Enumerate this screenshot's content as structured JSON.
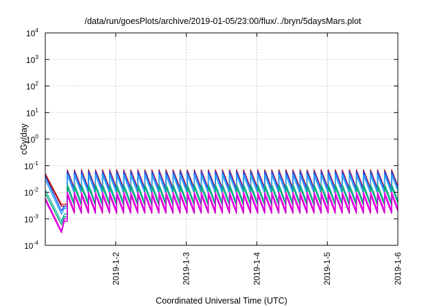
{
  "chart_data": {
    "type": "line",
    "title": "/data/run/goesPlots/archive/2019-01-05/23:00/flux/../bryn/5daysMars.plot",
    "xlabel": "Coordinated Universal Time (UTC)",
    "ylabel": "cGy/day",
    "y_scale": "log",
    "ylim": [
      0.0001,
      10000
    ],
    "y_ticks": [
      {
        "base": "10",
        "exp": "-4"
      },
      {
        "base": "10",
        "exp": "-3"
      },
      {
        "base": "10",
        "exp": "-2"
      },
      {
        "base": "10",
        "exp": "-1"
      },
      {
        "base": "10",
        "exp": "0"
      },
      {
        "base": "10",
        "exp": "1"
      },
      {
        "base": "10",
        "exp": "2"
      },
      {
        "base": "10",
        "exp": "3"
      },
      {
        "base": "10",
        "exp": "4"
      }
    ],
    "xlim": [
      "2019-01-01T00:00",
      "2019-01-06T00:00"
    ],
    "x_ticks": [
      "2019-1-2",
      "2019-1-3",
      "2019-1-4",
      "2019-1-5",
      "2019-1-6"
    ],
    "grid": true,
    "legend": "none",
    "pattern": {
      "initial_decay_end": "2019-01-01T05:30",
      "gap_end": "2019-01-01T07:30",
      "spike_period_hours": 2.4,
      "decay_ratio_per_period": 0.2
    },
    "series": [
      {
        "color": "#e41a1c",
        "start_value": 0.05,
        "trough_value": 0.0035,
        "level_after": 0.0035,
        "spike_peak": 0.07
      },
      {
        "color": "#8b1a1a",
        "start_value": 0.045,
        "trough_value": 0.003,
        "level_after": 0.003,
        "spike_peak": 0.065
      },
      {
        "color": "#1e50ff",
        "start_value": 0.04,
        "trough_value": 0.002,
        "level_after": 0.003,
        "spike_peak": 0.06
      },
      {
        "color": "#1fa0ff",
        "start_value": 0.03,
        "trough_value": 0.0015,
        "level_after": 0.0025,
        "spike_peak": 0.045
      },
      {
        "color": "#20b2aa",
        "start_value": 0.012,
        "trough_value": 0.0008,
        "level_after": 0.0015,
        "spike_peak": 0.02
      },
      {
        "color": "#00a86b",
        "start_value": 0.009,
        "trough_value": 0.0006,
        "level_after": 0.0012,
        "spike_peak": 0.016
      },
      {
        "color": "#ff00ff",
        "start_value": 0.006,
        "trough_value": 0.00035,
        "level_after": 0.001,
        "spike_peak": 0.01
      },
      {
        "color": "#cc00cc",
        "start_value": 0.005,
        "trough_value": 0.0003,
        "level_after": 0.0008,
        "spike_peak": 0.008
      }
    ]
  }
}
